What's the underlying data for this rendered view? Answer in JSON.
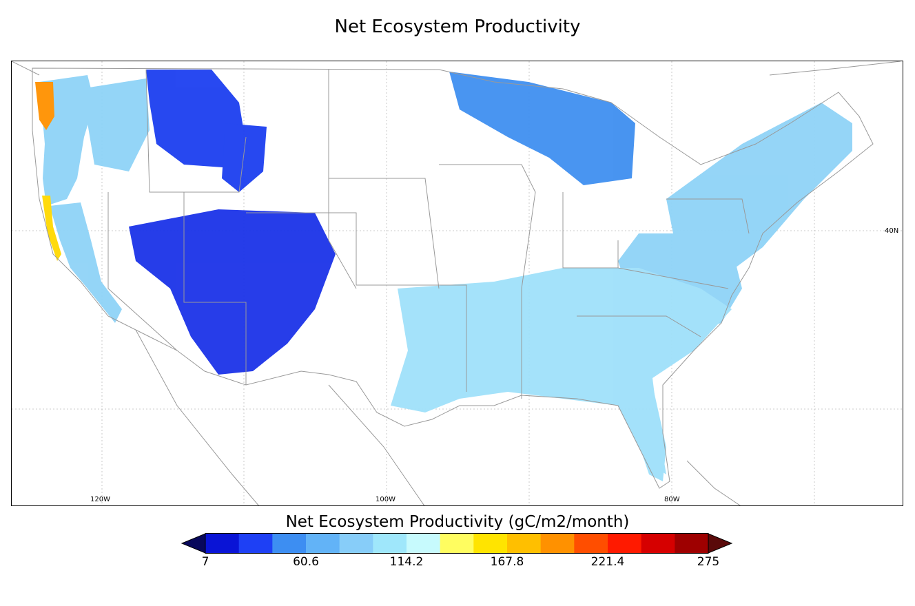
{
  "title": "Net Ecosystem Productivity",
  "map": {
    "lon_labels": [
      "120W",
      "100W",
      "80W"
    ],
    "lat_labels": [
      "40N"
    ],
    "regions": [
      {
        "name": "pacific-northwest-coast",
        "color": "#8fd3f7"
      },
      {
        "name": "california-coast-high",
        "color": "#ffd900"
      },
      {
        "name": "northern-rockies",
        "color": "#1c3ff0"
      },
      {
        "name": "southern-rockies",
        "color": "#1b33e8"
      },
      {
        "name": "upper-midwest",
        "color": "#3f8ff0"
      },
      {
        "name": "northeast",
        "color": "#8fd3f7"
      },
      {
        "name": "southeast",
        "color": "#9fe0fa"
      }
    ]
  },
  "colorbar": {
    "title": "Net Ecosystem Productivity (gC/m2/month)",
    "min": 7,
    "max": 275,
    "tick_labels": [
      "7",
      "60.6",
      "114.2",
      "167.8",
      "221.4",
      "275"
    ],
    "colors": [
      "#0a14d6",
      "#1e40f5",
      "#3d8ef2",
      "#62b3f7",
      "#87cdf9",
      "#9fe7fb",
      "#c7fafd",
      "#fffd60",
      "#ffe400",
      "#ffbf00",
      "#ff9100",
      "#ff4e00",
      "#ff1a00",
      "#d60000",
      "#9e0000"
    ],
    "under_color": "#08085c",
    "over_color": "#5a0a0a"
  }
}
